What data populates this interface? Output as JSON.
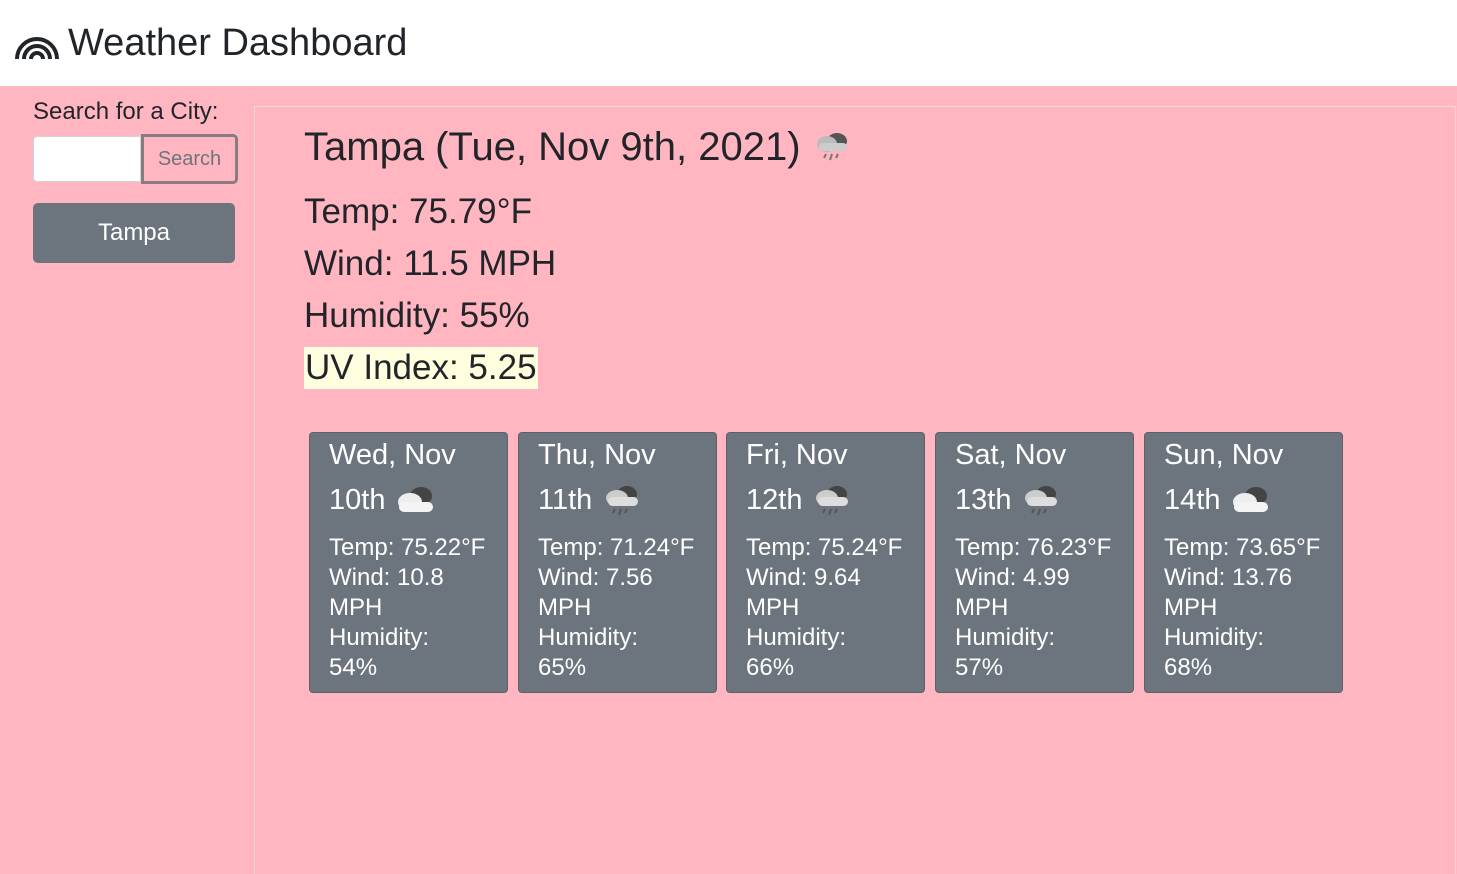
{
  "header": {
    "title": "Weather Dashboard",
    "icon": "rainbow-icon"
  },
  "sidebar": {
    "search_label": "Search for a City:",
    "search_input_value": "",
    "search_button_label": "Search",
    "history": [
      {
        "label": "Tampa"
      }
    ]
  },
  "current": {
    "title": "Tampa (Tue, Nov 9th, 2021)",
    "icon": "rain-cloud-icon",
    "temp": "Temp: 75.79°F",
    "wind": "Wind: 11.5 MPH",
    "humidity": "Humidity: 55%",
    "uv": "UV Index: 5.25",
    "uv_color": "#ffffe0"
  },
  "forecast": [
    {
      "day": "Wed, Nov",
      "date": "10th",
      "icon": "cloudy-icon",
      "temp": "Temp: 75.22°F",
      "wind1": "Wind: 10.8",
      "wind2": "MPH",
      "hum1": "Humidity:",
      "hum2": "54%"
    },
    {
      "day": "Thu, Nov",
      "date": "11th",
      "icon": "rain-cloud-icon",
      "temp": "Temp: 71.24°F",
      "wind1": "Wind: 7.56",
      "wind2": "MPH",
      "hum1": "Humidity:",
      "hum2": "65%"
    },
    {
      "day": "Fri, Nov",
      "date": "12th",
      "icon": "rain-cloud-icon",
      "temp": "Temp: 75.24°F",
      "wind1": "Wind: 9.64",
      "wind2": "MPH",
      "hum1": "Humidity:",
      "hum2": "66%"
    },
    {
      "day": "Sat, Nov",
      "date": "13th",
      "icon": "rain-cloud-icon",
      "temp": "Temp: 76.23°F",
      "wind1": "Wind: 4.99",
      "wind2": "MPH",
      "hum1": "Humidity:",
      "hum2": "57%"
    },
    {
      "day": "Sun, Nov",
      "date": "14th",
      "icon": "cloudy-icon",
      "temp": "Temp: 73.65°F",
      "wind1": "Wind: 13.76",
      "wind2": "MPH",
      "hum1": "Humidity:",
      "hum2": "68%"
    }
  ],
  "colors": {
    "background": "#ffb6c1",
    "card": "#6c757d",
    "uv_highlight": "#ffffe0"
  }
}
